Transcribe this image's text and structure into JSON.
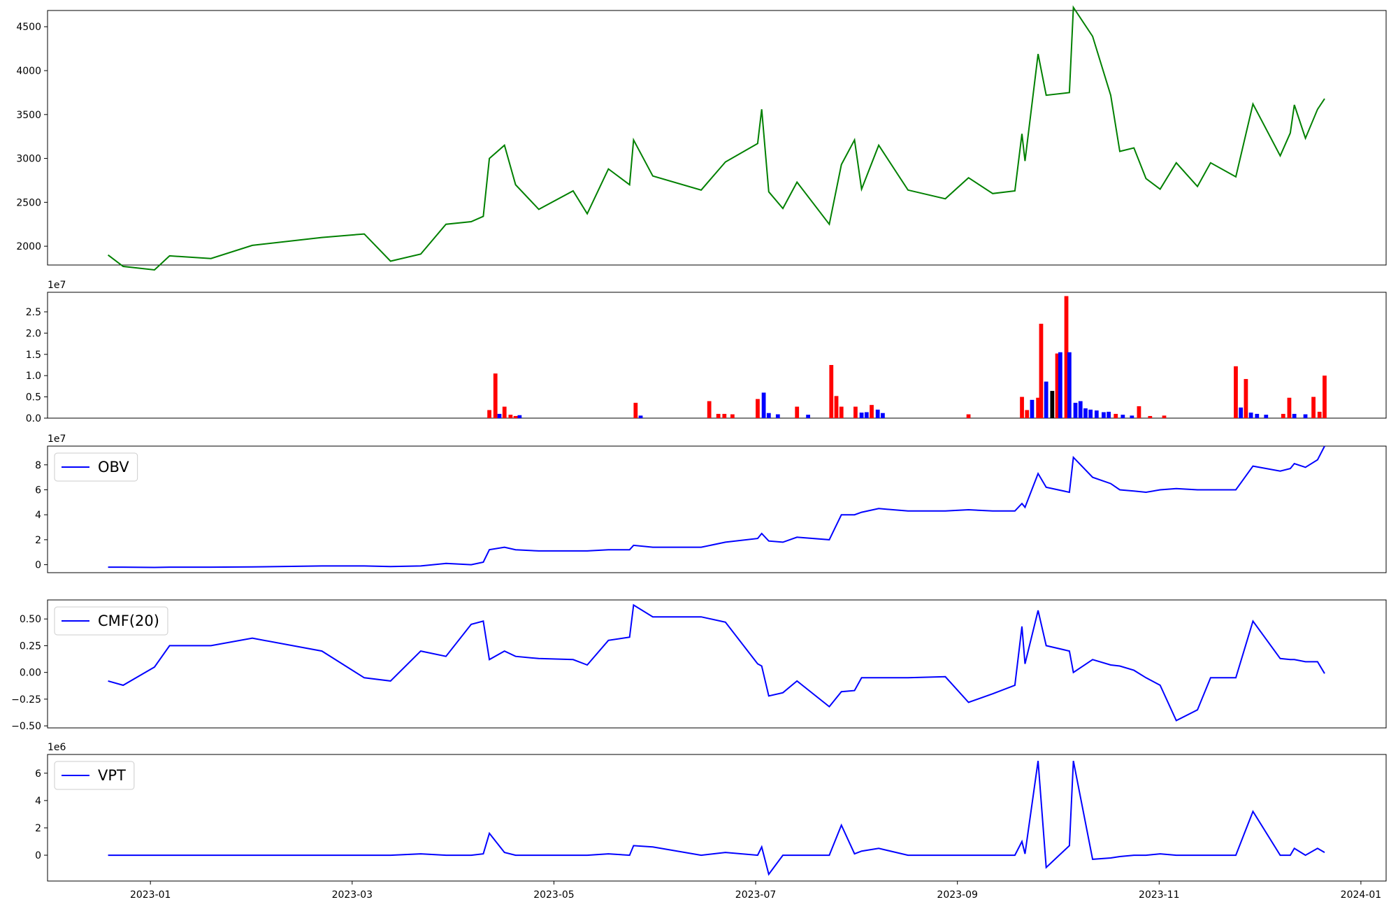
{
  "chart_data": [
    {
      "type": "line",
      "x": [
        0.58,
        0.73,
        1.04,
        1.19,
        1.6,
        2.01,
        2.7,
        3.12,
        3.38,
        3.68,
        3.93,
        4.18,
        4.3,
        4.36,
        4.51,
        4.62,
        4.85,
        5.19,
        5.33,
        5.54,
        5.75,
        5.79,
        5.98,
        6.46,
        6.7,
        7.02,
        7.06,
        7.13,
        7.27,
        7.41,
        7.73,
        7.85,
        7.98,
        8.05,
        8.22,
        8.51,
        8.88,
        9.11,
        9.35,
        9.57,
        9.64,
        9.67,
        9.8,
        9.88,
        10.11,
        10.15,
        10.34,
        10.52,
        10.61,
        10.75,
        10.87,
        11.01,
        11.17,
        11.38,
        11.51,
        11.76,
        11.93,
        12.2,
        12.3,
        12.34,
        12.45,
        12.57,
        12.64
      ],
      "series": [
        {
          "color": "#008000",
          "values": [
            1900,
            1770,
            1730,
            1890,
            1860,
            2010,
            2100,
            2140,
            1830,
            1910,
            2250,
            2280,
            2340,
            3000,
            3150,
            2700,
            2420,
            2630,
            2370,
            2880,
            2700,
            3210,
            2800,
            2640,
            2960,
            3170,
            3560,
            2620,
            2430,
            2730,
            2250,
            2930,
            3210,
            2650,
            3150,
            2640,
            2540,
            2780,
            2600,
            2630,
            3280,
            2970,
            4190,
            3720,
            3750,
            4720,
            4390,
            3720,
            3080,
            3120,
            2770,
            2650,
            2950,
            2680,
            2950,
            2790,
            3620,
            3030,
            3290,
            3610,
            3230,
            3560,
            3680
          ]
        }
      ],
      "xlim": [
        -0.02,
        13.25
      ],
      "ylim": [
        1786,
        4685
      ],
      "yticks": [
        2000,
        2500,
        3000,
        3500,
        4000,
        4500
      ]
    },
    {
      "type": "bar",
      "offset_label": "1e7",
      "x": [
        4.36,
        4.42,
        4.46,
        4.51,
        4.57,
        4.62,
        4.66,
        5.81,
        5.86,
        6.54,
        6.63,
        6.69,
        6.77,
        7.02,
        7.08,
        7.13,
        7.22,
        7.41,
        7.52,
        7.75,
        7.8,
        7.85,
        7.99,
        8.05,
        8.1,
        8.15,
        8.21,
        8.26,
        9.11,
        9.64,
        9.69,
        9.74,
        9.8,
        9.83,
        9.88,
        9.94,
        9.99,
        10.02,
        10.08,
        10.11,
        10.17,
        10.22,
        10.27,
        10.32,
        10.38,
        10.45,
        10.5,
        10.57,
        10.64,
        10.73,
        10.8,
        10.91,
        11.05,
        11.76,
        11.81,
        11.86,
        11.91,
        11.97,
        12.06,
        12.23,
        12.29,
        12.34,
        12.45,
        12.53,
        12.59,
        12.64
      ],
      "values": [
        0.19,
        1.05,
        0.1,
        0.27,
        0.08,
        0.05,
        0.07,
        0.36,
        0.06,
        0.4,
        0.1,
        0.1,
        0.09,
        0.45,
        0.6,
        0.12,
        0.09,
        0.27,
        0.08,
        1.25,
        0.52,
        0.27,
        0.27,
        0.13,
        0.14,
        0.31,
        0.2,
        0.12,
        0.09,
        0.5,
        0.19,
        0.43,
        0.48,
        2.22,
        0.86,
        0.64,
        1.52,
        1.55,
        2.87,
        1.55,
        0.36,
        0.4,
        0.23,
        0.2,
        0.18,
        0.14,
        0.15,
        0.1,
        0.08,
        0.06,
        0.28,
        0.05,
        0.06,
        1.22,
        0.25,
        0.92,
        0.13,
        0.1,
        0.08,
        0.1,
        0.48,
        0.1,
        0.09,
        0.5,
        0.15,
        1.0
      ],
      "colors": [
        "red",
        "red",
        "blue",
        "red",
        "red",
        "red",
        "blue",
        "red",
        "blue",
        "red",
        "red",
        "red",
        "red",
        "red",
        "blue",
        "blue",
        "blue",
        "red",
        "blue",
        "red",
        "red",
        "red",
        "red",
        "blue",
        "blue",
        "red",
        "blue",
        "blue",
        "red",
        "red",
        "red",
        "blue",
        "red",
        "red",
        "blue",
        "black",
        "red",
        "blue",
        "red",
        "blue",
        "blue",
        "blue",
        "blue",
        "blue",
        "blue",
        "blue",
        "blue",
        "red",
        "blue",
        "blue",
        "red",
        "red",
        "red",
        "red",
        "blue",
        "red",
        "blue",
        "blue",
        "blue",
        "red",
        "red",
        "blue",
        "blue",
        "red",
        "red",
        "red"
      ],
      "xlim": [
        -0.02,
        13.25
      ],
      "ylim": [
        0,
        2.96
      ],
      "yticks": [
        {
          "value": 0,
          "label": "0.0"
        },
        0.5,
        {
          "value": 1,
          "label": "1.0"
        },
        1.5,
        {
          "value": 2,
          "label": "2.0"
        },
        2.5
      ]
    },
    {
      "type": "line",
      "offset_label": "1e7",
      "legend": "upper left",
      "x": [
        0.58,
        0.73,
        1.04,
        1.19,
        1.6,
        2.01,
        2.7,
        3.12,
        3.38,
        3.68,
        3.93,
        4.18,
        4.3,
        4.36,
        4.51,
        4.62,
        4.85,
        5.19,
        5.33,
        5.54,
        5.75,
        5.79,
        5.98,
        6.46,
        6.7,
        7.02,
        7.06,
        7.13,
        7.27,
        7.41,
        7.73,
        7.85,
        7.98,
        8.05,
        8.22,
        8.51,
        8.88,
        9.11,
        9.35,
        9.57,
        9.64,
        9.67,
        9.8,
        9.88,
        10.11,
        10.15,
        10.34,
        10.52,
        10.61,
        10.75,
        10.87,
        11.01,
        11.17,
        11.38,
        11.51,
        11.76,
        11.93,
        12.2,
        12.3,
        12.34,
        12.45,
        12.57,
        12.64
      ],
      "series": [
        {
          "name": "OBV",
          "color": "#0000ff",
          "values": [
            -0.2,
            -0.2,
            -0.22,
            -0.2,
            -0.2,
            -0.18,
            -0.1,
            -0.1,
            -0.15,
            -0.1,
            0.1,
            0,
            0.2,
            1.2,
            1.4,
            1.2,
            1.1,
            1.1,
            1.1,
            1.2,
            1.2,
            1.55,
            1.4,
            1.4,
            1.8,
            2.1,
            2.5,
            1.9,
            1.8,
            2.2,
            2.0,
            4.0,
            4.0,
            4.2,
            4.5,
            4.3,
            4.3,
            4.4,
            4.3,
            4.3,
            4.9,
            4.6,
            7.3,
            6.2,
            5.8,
            8.6,
            7.0,
            6.5,
            6.0,
            5.9,
            5.8,
            6.0,
            6.1,
            6.0,
            6.0,
            6.0,
            7.9,
            7.5,
            7.7,
            8.1,
            7.8,
            8.4,
            9.5
          ]
        }
      ],
      "xlim": [
        -0.02,
        13.25
      ],
      "ylim": [
        -0.64,
        9.5
      ],
      "yticks": [
        0,
        2,
        4,
        6,
        8
      ]
    },
    {
      "type": "line",
      "legend": "upper left",
      "x": [
        0.58,
        0.73,
        1.04,
        1.19,
        1.6,
        2.01,
        2.7,
        3.12,
        3.38,
        3.68,
        3.93,
        4.18,
        4.3,
        4.36,
        4.51,
        4.62,
        4.85,
        5.19,
        5.33,
        5.54,
        5.75,
        5.79,
        5.98,
        6.46,
        6.7,
        7.02,
        7.06,
        7.13,
        7.27,
        7.41,
        7.73,
        7.85,
        7.98,
        8.05,
        8.22,
        8.51,
        8.88,
        9.11,
        9.35,
        9.57,
        9.64,
        9.67,
        9.8,
        9.88,
        10.11,
        10.15,
        10.34,
        10.52,
        10.61,
        10.75,
        10.87,
        11.01,
        11.17,
        11.38,
        11.51,
        11.76,
        11.93,
        12.2,
        12.3,
        12.34,
        12.45,
        12.57,
        12.64
      ],
      "series": [
        {
          "name": "CMF(20)",
          "color": "#0000ff",
          "values": [
            -0.08,
            -0.12,
            0.05,
            0.25,
            0.25,
            0.32,
            0.2,
            -0.05,
            -0.08,
            0.2,
            0.15,
            0.45,
            0.48,
            0.12,
            0.2,
            0.15,
            0.13,
            0.12,
            0.07,
            0.3,
            0.33,
            0.63,
            0.52,
            0.52,
            0.47,
            0.08,
            0.06,
            -0.22,
            -0.19,
            -0.08,
            -0.32,
            -0.18,
            -0.17,
            -0.05,
            -0.05,
            -0.05,
            -0.04,
            -0.28,
            -0.2,
            -0.12,
            0.43,
            0.08,
            0.58,
            0.25,
            0.2,
            0.0,
            0.12,
            0.07,
            0.06,
            0.02,
            -0.05,
            -0.12,
            -0.45,
            -0.35,
            -0.05,
            -0.05,
            0.48,
            0.13,
            0.12,
            0.12,
            0.1,
            0.1,
            -0.01
          ]
        }
      ],
      "xlim": [
        -0.02,
        13.25
      ],
      "ylim": [
        -0.519,
        0.678
      ],
      "yticks": [
        {
          "value": -0.5,
          "label": "−0.50"
        },
        {
          "value": -0.25,
          "label": "−0.25"
        },
        {
          "value": 0,
          "label": "0.00"
        },
        {
          "value": 0.25,
          "label": "0.25"
        },
        {
          "value": 0.5,
          "label": "0.50"
        }
      ]
    },
    {
      "type": "line",
      "offset_label": "1e6",
      "legend": "upper left",
      "x": [
        0.58,
        0.73,
        1.04,
        1.19,
        1.6,
        2.01,
        2.7,
        3.12,
        3.38,
        3.68,
        3.93,
        4.18,
        4.3,
        4.36,
        4.51,
        4.62,
        4.85,
        5.19,
        5.33,
        5.54,
        5.75,
        5.79,
        5.98,
        6.46,
        6.7,
        7.02,
        7.06,
        7.13,
        7.27,
        7.41,
        7.73,
        7.85,
        7.98,
        8.05,
        8.22,
        8.51,
        8.88,
        9.11,
        9.35,
        9.57,
        9.64,
        9.67,
        9.8,
        9.88,
        10.11,
        10.15,
        10.34,
        10.52,
        10.61,
        10.75,
        10.87,
        11.01,
        11.17,
        11.38,
        11.51,
        11.76,
        11.93,
        12.2,
        12.3,
        12.34,
        12.45,
        12.57,
        12.64
      ],
      "series": [
        {
          "name": "VPT",
          "color": "#0000ff",
          "values": [
            0,
            0,
            0,
            0,
            0,
            0,
            0,
            0,
            0,
            0.1,
            0,
            0,
            0.1,
            1.6,
            0.2,
            0,
            0,
            0,
            0,
            0.1,
            0,
            0.7,
            0.6,
            0,
            0.2,
            0,
            0.6,
            -1.4,
            0,
            0,
            0,
            2.2,
            0.1,
            0.3,
            0.5,
            0,
            0,
            0,
            0,
            0,
            1.0,
            0.1,
            6.9,
            -0.9,
            0.7,
            6.9,
            -0.3,
            -0.2,
            -0.1,
            0,
            0,
            0.1,
            0,
            0,
            0,
            0,
            3.2,
            0,
            0,
            0.5,
            0,
            0.5,
            0.2
          ]
        }
      ],
      "xlim": [
        -0.02,
        13.25
      ],
      "ylim": [
        -1.89,
        7.37
      ],
      "yticks": [
        0,
        2,
        4,
        6
      ],
      "xticks": [
        {
          "value": 1,
          "label": "2023-01"
        },
        {
          "value": 3,
          "label": "2023-03"
        },
        {
          "value": 5,
          "label": "2023-05"
        },
        {
          "value": 7,
          "label": "2023-07"
        },
        {
          "value": 9,
          "label": "2023-09"
        },
        {
          "value": 11,
          "label": "2023-11"
        },
        {
          "value": 13,
          "label": "2024-01"
        }
      ]
    }
  ]
}
